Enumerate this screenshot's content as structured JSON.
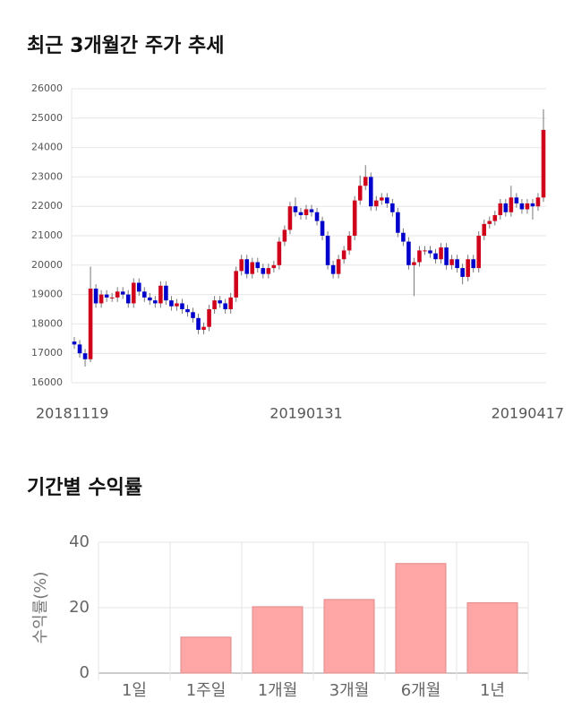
{
  "chart_data": [
    {
      "type": "candlestick",
      "title": "최근 3개월간 주가 추세",
      "categories": [
        "20181119",
        null,
        null,
        null,
        null,
        null,
        null,
        null,
        null,
        null,
        null,
        null,
        null,
        null,
        null,
        null,
        null,
        null,
        null,
        null,
        null,
        null,
        null,
        null,
        null,
        null,
        null,
        null,
        null,
        null,
        null,
        null,
        null,
        null,
        null,
        null,
        null,
        null,
        null,
        null,
        null,
        null,
        null,
        "20190131",
        null,
        null,
        null,
        null,
        null,
        null,
        null,
        null,
        null,
        null,
        null,
        null,
        null,
        null,
        null,
        null,
        null,
        null,
        null,
        null,
        null,
        null,
        null,
        null,
        null,
        null,
        null,
        null,
        null,
        null,
        null,
        null,
        null,
        null,
        null,
        null,
        null,
        null,
        null,
        null,
        null,
        null,
        null,
        "20190417"
      ],
      "open": [
        17400,
        17300,
        17000,
        16800,
        19200,
        18700,
        19000,
        18900,
        18900,
        19100,
        19000,
        18700,
        19400,
        19100,
        18900,
        18800,
        18700,
        19300,
        18800,
        18600,
        18700,
        18500,
        18400,
        18200,
        17800,
        17900,
        18500,
        18800,
        18700,
        18500,
        18900,
        19800,
        20200,
        19700,
        20100,
        19900,
        19700,
        19900,
        20000,
        20800,
        21200,
        22000,
        21800,
        21700,
        21900,
        21800,
        21500,
        21000,
        20000,
        19700,
        20200,
        20500,
        21000,
        22200,
        22700,
        23000,
        22000,
        22200,
        22300,
        22100,
        21800,
        21100,
        20800,
        20000,
        20100,
        20500,
        20500,
        20400,
        20200,
        20600,
        20000,
        20200,
        19900,
        19600,
        20200,
        19900,
        21000,
        21400,
        21500,
        21700,
        22100,
        21800,
        22300,
        22100,
        21900,
        22100,
        22000,
        22300
      ],
      "high": [
        17550,
        17450,
        17150,
        19950,
        19350,
        19150,
        19150,
        19050,
        19250,
        19250,
        19150,
        19550,
        19550,
        19250,
        19050,
        18950,
        19450,
        19450,
        18950,
        18850,
        18850,
        18650,
        18550,
        18350,
        18050,
        18650,
        18950,
        18950,
        18850,
        19050,
        19950,
        20350,
        20350,
        20250,
        20250,
        20050,
        20050,
        20150,
        20950,
        21350,
        22150,
        22300,
        21950,
        22050,
        22050,
        21950,
        21650,
        21150,
        20150,
        20350,
        20650,
        21150,
        22350,
        23050,
        23400,
        23150,
        22350,
        22450,
        22450,
        22250,
        21950,
        21250,
        20950,
        20250,
        20650,
        20650,
        20650,
        20550,
        20750,
        20750,
        20350,
        20350,
        20050,
        20350,
        20350,
        21150,
        21550,
        21650,
        21850,
        22250,
        22250,
        22700,
        22450,
        22250,
        22250,
        22250,
        22450,
        25300
      ],
      "low": [
        17150,
        16850,
        16550,
        16700,
        18550,
        18550,
        18750,
        18750,
        18750,
        18850,
        18550,
        18550,
        18950,
        18750,
        18650,
        18550,
        18550,
        18650,
        18450,
        18450,
        18350,
        18250,
        18050,
        17650,
        17650,
        17750,
        18350,
        18550,
        18350,
        18350,
        18750,
        19650,
        19550,
        19550,
        19750,
        19550,
        19550,
        19750,
        19850,
        20650,
        21050,
        21650,
        21550,
        21550,
        21650,
        21350,
        20850,
        19850,
        19550,
        19550,
        20050,
        20350,
        20850,
        22050,
        22550,
        21850,
        21850,
        22050,
        21950,
        21650,
        20950,
        20650,
        19850,
        18950,
        19950,
        20350,
        20250,
        20050,
        20050,
        19850,
        19850,
        19750,
        19350,
        19450,
        19750,
        19750,
        20850,
        21250,
        21350,
        21550,
        21650,
        21650,
        21950,
        21750,
        21750,
        21550,
        21850,
        22150
      ],
      "close": [
        17300,
        17000,
        16800,
        19200,
        18700,
        19000,
        18900,
        18900,
        19100,
        19000,
        18700,
        19400,
        19100,
        18900,
        18800,
        18700,
        19300,
        18800,
        18600,
        18700,
        18500,
        18400,
        18200,
        17800,
        17900,
        18500,
        18800,
        18700,
        18500,
        18900,
        19800,
        20200,
        19700,
        20100,
        19900,
        19700,
        19900,
        20000,
        20800,
        21200,
        22000,
        21800,
        21700,
        21900,
        21800,
        21500,
        21000,
        20000,
        19700,
        20200,
        20500,
        21000,
        22200,
        22700,
        23000,
        22000,
        22200,
        22300,
        22100,
        21800,
        21100,
        20800,
        20000,
        20100,
        20500,
        20500,
        20400,
        20200,
        20600,
        20000,
        20200,
        19900,
        19600,
        20200,
        19900,
        21000,
        21400,
        21500,
        21700,
        22100,
        21800,
        22300,
        22100,
        21900,
        22100,
        22000,
        22300,
        24600
      ],
      "up_color": "#d0021b",
      "down_color": "#0000cc",
      "ylim": [
        16000,
        26000
      ],
      "yticks": [
        16000,
        17000,
        18000,
        19000,
        20000,
        21000,
        22000,
        23000,
        24000,
        25000,
        26000
      ],
      "grid": true
    },
    {
      "type": "bar",
      "title": "기간별 수익률",
      "y_label": "수익률(%)",
      "categories": [
        "1일",
        "1주일",
        "1개월",
        "3개월",
        "6개월",
        "1년"
      ],
      "values": [
        0,
        11,
        20.3,
        22.5,
        33.5,
        21.5
      ],
      "color": "#ffa6a6",
      "ylim": [
        0,
        40
      ],
      "yticks": [
        0,
        20,
        40
      ],
      "grid": true
    }
  ]
}
